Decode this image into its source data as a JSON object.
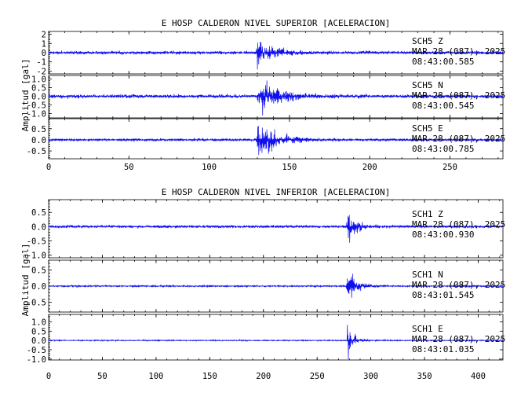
{
  "colors": {
    "trace": "#1010ee",
    "axes": "#000000",
    "background": "#ffffff"
  },
  "chart_data": [
    {
      "type": "line",
      "title": "E HOSP CALDERON NIVEL SUPERIOR [ACELERACION]",
      "ylabel": "Amplitud [gal]",
      "xlabel": "",
      "xlim": [
        0,
        283
      ],
      "xticks": [
        0,
        50,
        100,
        150,
        200,
        250
      ],
      "grid": false,
      "series": [
        {
          "station": "SCH5",
          "component": "Z",
          "date": "MAR 28 (087), 2025",
          "start_time": "08:43:00.585",
          "ylim": [
            -2.3,
            2.3
          ],
          "yticks": [
            -2,
            -1,
            0,
            1,
            2
          ],
          "event_time_s": 130,
          "event_peak": 2.1,
          "noise": 0.22,
          "decay_s": 9
        },
        {
          "station": "SCH5",
          "component": "N",
          "date": "MAR 28 (087), 2025",
          "start_time": "08:43:00.545",
          "ylim": [
            -1.25,
            1.2
          ],
          "yticks": [
            -1.0,
            -0.5,
            0.0,
            0.5,
            1.0
          ],
          "event_time_s": 130.5,
          "event_peak": 1.05,
          "noise": 0.13,
          "decay_s": 14
        },
        {
          "station": "SCH5",
          "component": "E",
          "date": "MAR 28 (087), 2025",
          "start_time": "08:43:00.785",
          "ylim": [
            -0.85,
            0.95
          ],
          "yticks": [
            -0.5,
            0.0,
            0.5
          ],
          "event_time_s": 130,
          "event_peak": 0.88,
          "noise": 0.07,
          "decay_s": 13
        }
      ]
    },
    {
      "type": "line",
      "title": "E HOSP CALDERON NIVEL INFERIOR [ACELERACION]",
      "ylabel": "Amplitud [gal]",
      "xlabel": "",
      "xlim": [
        0,
        423
      ],
      "xticks": [
        0,
        50,
        100,
        150,
        200,
        250,
        300,
        350,
        400
      ],
      "grid": false,
      "series": [
        {
          "station": "SCH1",
          "component": "Z",
          "date": "MAR 28 (087), 2025",
          "start_time": "08:43:00.930",
          "ylim": [
            -1.1,
            0.95
          ],
          "yticks": [
            -1.0,
            -0.5,
            0.0,
            0.5
          ],
          "event_time_s": 278,
          "event_peak": 0.95,
          "noise": 0.06,
          "decay_s": 6
        },
        {
          "station": "SCH1",
          "component": "N",
          "date": "MAR 28 (087), 2025",
          "start_time": "08:43:01.545",
          "ylim": [
            -0.8,
            0.8
          ],
          "yticks": [
            -0.5,
            0.0,
            0.5
          ],
          "event_time_s": 278,
          "event_peak": 0.62,
          "noise": 0.03,
          "decay_s": 9
        },
        {
          "station": "SCH1",
          "component": "E",
          "date": "MAR 28 (087), 2025",
          "start_time": "08:43:01.035",
          "ylim": [
            -1.05,
            1.4
          ],
          "yticks": [
            -1.0,
            -0.5,
            0.0,
            0.5,
            1.0
          ],
          "event_time_s": 278,
          "event_peak": 1.15,
          "noise": 0.04,
          "decay_s": 6
        }
      ]
    }
  ]
}
